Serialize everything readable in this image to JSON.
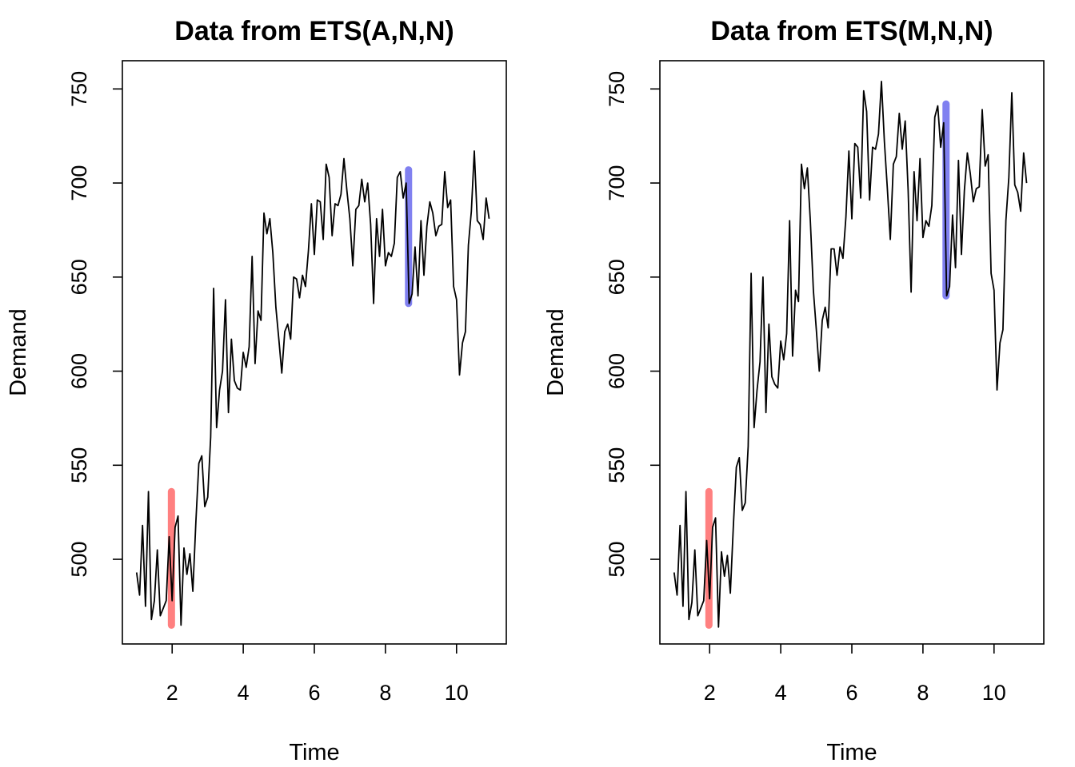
{
  "chart_data": [
    {
      "type": "line",
      "title": "Data from ETS(A,N,N)",
      "xlabel": "Time",
      "ylabel": "Demand",
      "xlim": [
        0.6,
        11.4
      ],
      "ylim": [
        455,
        765
      ],
      "xticks": [
        2,
        4,
        6,
        8,
        10
      ],
      "yticks": [
        500,
        550,
        600,
        650,
        700,
        750
      ],
      "grid": false,
      "start": 1,
      "frequency": 12,
      "series": [
        {
          "values": [
            493,
            481,
            518,
            475,
            536,
            468,
            478,
            505,
            470,
            474,
            478,
            512,
            478,
            517,
            523,
            465,
            506,
            492,
            503,
            483,
            520,
            551,
            555,
            528,
            533,
            565,
            644,
            570,
            590,
            600,
            638,
            578,
            617,
            595,
            591,
            590,
            610,
            602,
            613,
            661,
            604,
            632,
            627,
            684,
            673,
            681,
            663,
            634,
            617,
            599,
            621,
            625,
            617,
            650,
            649,
            639,
            651,
            645,
            664,
            689,
            662,
            691,
            690,
            670,
            710,
            703,
            672,
            689,
            688,
            694,
            713,
            696,
            681,
            656,
            686,
            688,
            702,
            690,
            700,
            678,
            636,
            681,
            661,
            686,
            656,
            663,
            661,
            668,
            703,
            706,
            692,
            700,
            636,
            641,
            666,
            640,
            680,
            651,
            677,
            690,
            684,
            672,
            677,
            678,
            706,
            687,
            691,
            645,
            638,
            598,
            615,
            621,
            667,
            685,
            717,
            680,
            678,
            670,
            692,
            681
          ]
        }
      ],
      "highlights": [
        {
          "x": 1.98,
          "y_from": 465,
          "y_to": 536,
          "color": "#ff8080"
        },
        {
          "x": 8.65,
          "y_from": 636,
          "y_to": 707,
          "color": "#8080f0"
        }
      ]
    },
    {
      "type": "line",
      "title": "Data from ETS(M,N,N)",
      "xlabel": "Time",
      "ylabel": "Demand",
      "xlim": [
        0.6,
        11.4
      ],
      "ylim": [
        455,
        765
      ],
      "xticks": [
        2,
        4,
        6,
        8,
        10
      ],
      "yticks": [
        500,
        550,
        600,
        650,
        700,
        750
      ],
      "grid": false,
      "start": 1,
      "frequency": 12,
      "series": [
        {
          "values": [
            493,
            481,
            518,
            475,
            536,
            468,
            477,
            505,
            470,
            474,
            478,
            510,
            479,
            517,
            522,
            464,
            504,
            491,
            502,
            482,
            518,
            549,
            554,
            526,
            530,
            560,
            652,
            570,
            590,
            605,
            650,
            578,
            625,
            597,
            593,
            591,
            616,
            606,
            620,
            680,
            608,
            643,
            637,
            710,
            697,
            708,
            680,
            643,
            622,
            600,
            627,
            634,
            623,
            665,
            665,
            651,
            666,
            660,
            682,
            717,
            681,
            721,
            719,
            692,
            749,
            738,
            691,
            719,
            718,
            726,
            754,
            722,
            697,
            670,
            710,
            714,
            737,
            718,
            733,
            696,
            642,
            706,
            680,
            713,
            671,
            680,
            677,
            688,
            735,
            741,
            719,
            732,
            640,
            645,
            683,
            655,
            712,
            662,
            696,
            716,
            705,
            690,
            697,
            698,
            739,
            709,
            715,
            652,
            643,
            590,
            615,
            622,
            680,
            703,
            748,
            699,
            695,
            685,
            716,
            700
          ]
        }
      ],
      "highlights": [
        {
          "x": 1.98,
          "y_from": 465,
          "y_to": 536,
          "color": "#ff8080"
        },
        {
          "x": 8.65,
          "y_from": 640,
          "y_to": 742,
          "color": "#8080f0"
        }
      ]
    }
  ]
}
